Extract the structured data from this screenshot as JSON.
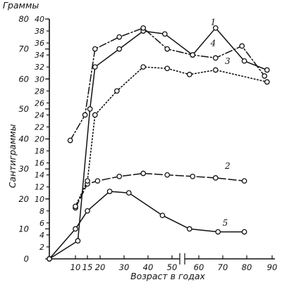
{
  "chart_data": {
    "type": "line",
    "title": "",
    "xlabel": "Возраст в годах",
    "ylabel_left": "Сантиграммы",
    "ylabel_right": "Граммы",
    "x_ticks": [
      "10",
      "15",
      "20",
      "30",
      "40",
      "50",
      "60",
      "70",
      "80",
      "90"
    ],
    "x_tick_values": [
      10,
      15,
      20,
      30,
      40,
      50,
      60,
      70,
      80,
      90
    ],
    "y_left_ticks": [
      "0",
      "10",
      "20",
      "30",
      "40",
      "50",
      "60",
      "70",
      "80"
    ],
    "y_left_values": [
      0,
      10,
      20,
      30,
      40,
      50,
      60,
      70,
      80
    ],
    "y_right_ticks": [
      "2",
      "4",
      "6",
      "8",
      "10",
      "12",
      "14",
      "16",
      "18",
      "20",
      "22",
      "24",
      "26",
      "28",
      "30",
      "32",
      "34",
      "36",
      "38",
      "40"
    ],
    "y_right_values": [
      2,
      4,
      6,
      8,
      10,
      12,
      14,
      16,
      18,
      20,
      22,
      24,
      26,
      28,
      30,
      32,
      34,
      36,
      38,
      40
    ],
    "ylim": [
      0,
      80
    ],
    "x_axis_break": "between 50 and 60",
    "series": [
      {
        "name": "1",
        "style": "solid",
        "x": [
          0,
          11,
          16,
          18,
          28,
          38,
          47,
          58,
          67,
          79,
          88
        ],
        "y": [
          0,
          6,
          50,
          64,
          70,
          76,
          75,
          68,
          77,
          66,
          63
        ]
      },
      {
        "name": "2",
        "style": "long-dash",
        "x": [
          10,
          15,
          19,
          28,
          38,
          48,
          58,
          67,
          79
        ],
        "y": [
          17,
          25,
          26,
          27.5,
          28.5,
          28,
          27.5,
          27,
          26
        ]
      },
      {
        "name": "3",
        "style": "dotted",
        "x": [
          10,
          15,
          18,
          27,
          38,
          48,
          57,
          67,
          88
        ],
        "y": [
          17.5,
          26,
          48,
          56,
          64,
          63.5,
          61.5,
          63,
          59
        ]
      },
      {
        "name": "4",
        "style": "dash-dot",
        "x": [
          8,
          14,
          18,
          28,
          38,
          48,
          58,
          67,
          78,
          87
        ],
        "y": [
          39.5,
          48,
          70,
          74,
          77,
          70,
          68,
          67,
          71,
          61
        ]
      },
      {
        "name": "5",
        "style": "solid",
        "x": [
          0,
          10,
          15,
          24,
          32,
          46,
          57,
          68,
          79
        ],
        "y": [
          0,
          10,
          16,
          22.5,
          22,
          14.5,
          10,
          9,
          9
        ]
      }
    ],
    "curve_labels": [
      {
        "text": "1",
        "x": 66,
        "y": 78
      },
      {
        "text": "2",
        "x": 72,
        "y": 30
      },
      {
        "text": "3",
        "x": 72,
        "y": 65
      },
      {
        "text": "4",
        "x": 66,
        "y": 71
      },
      {
        "text": "5",
        "x": 71,
        "y": 11
      }
    ]
  }
}
